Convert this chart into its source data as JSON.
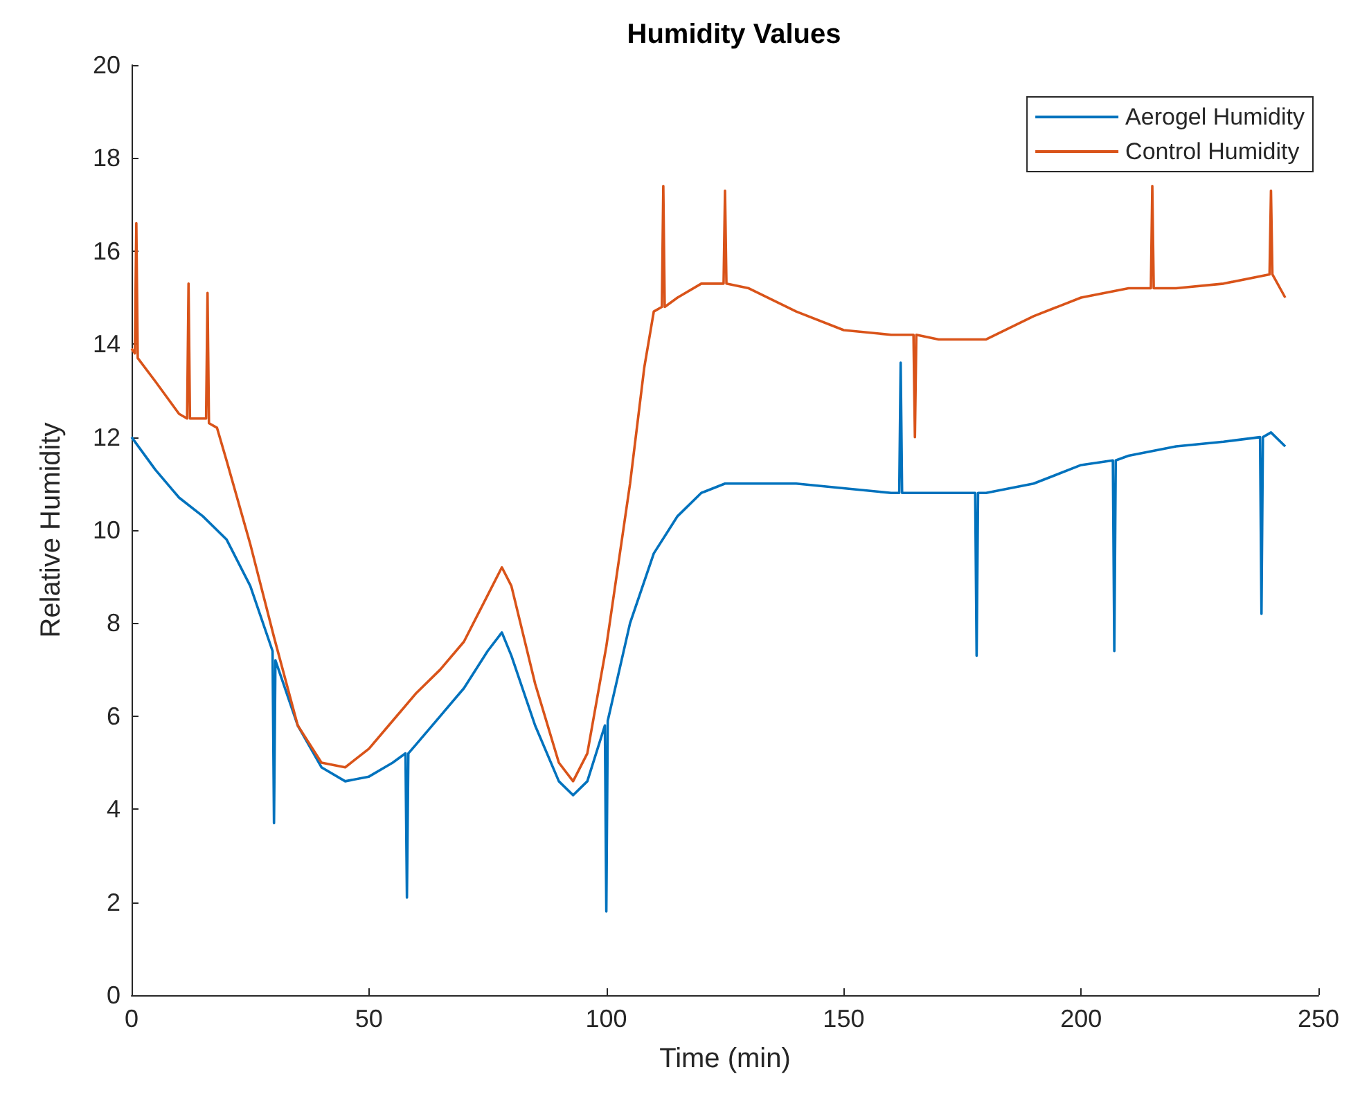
{
  "chart_data": {
    "type": "line",
    "title": "Humidity Values",
    "xlabel": "Time (min)",
    "ylabel": "Relative Humidity",
    "xlim": [
      0,
      250
    ],
    "xticks": [
      0,
      50,
      100,
      150,
      200,
      250
    ],
    "ylim": [
      0,
      20
    ],
    "yticks": [
      0,
      2,
      4,
      6,
      8,
      10,
      12,
      14,
      16,
      18,
      20
    ],
    "grid": false,
    "legend": "top right",
    "marker": "none",
    "line_style": "solid",
    "series": [
      {
        "name": "Aerogel Humidity",
        "color": "#0072bd",
        "x": [
          0,
          5,
          10,
          15,
          20,
          25,
          29.7,
          30,
          30.3,
          35,
          40,
          45,
          50,
          55,
          57.7,
          58,
          58.3,
          60,
          65,
          70,
          75,
          78,
          80,
          85,
          90,
          93,
          96,
          99.7,
          100,
          100.3,
          105,
          110,
          115,
          120,
          125,
          130,
          140,
          150,
          160,
          161.7,
          162,
          162.3,
          170,
          177.7,
          178,
          178.3,
          180,
          190,
          200,
          206.7,
          207,
          207.3,
          210,
          220,
          230,
          237.7,
          238,
          238.3,
          240,
          243
        ],
        "values": [
          12,
          11.3,
          10.7,
          10.3,
          9.8,
          8.8,
          7.4,
          3.7,
          7.2,
          5.8,
          4.9,
          4.6,
          4.7,
          5.0,
          5.2,
          2.1,
          5.2,
          5.4,
          6.0,
          6.6,
          7.4,
          7.8,
          7.3,
          5.8,
          4.6,
          4.3,
          4.6,
          5.8,
          1.8,
          5.9,
          8.0,
          9.5,
          10.3,
          10.8,
          11.0,
          11.0,
          11.0,
          10.9,
          10.8,
          10.8,
          13.6,
          10.8,
          10.8,
          10.8,
          7.3,
          10.8,
          10.8,
          11.0,
          11.4,
          11.5,
          7.4,
          11.5,
          11.6,
          11.8,
          11.9,
          12.0,
          8.2,
          12.0,
          12.1,
          11.8
        ]
      },
      {
        "name": "Control Humidity",
        "color": "#d95319",
        "x": [
          0,
          0.7,
          1,
          1.3,
          5,
          10,
          11.7,
          12,
          12.3,
          15,
          15.7,
          16,
          16.3,
          18,
          20,
          25,
          30,
          35,
          40,
          45,
          50,
          55,
          60,
          65,
          70,
          75,
          78,
          80,
          85,
          90,
          93,
          96,
          100,
          105,
          108,
          110,
          111.7,
          112,
          112.3,
          115,
          120,
          124.7,
          125,
          125.3,
          130,
          140,
          150,
          160,
          164.7,
          165,
          165.3,
          170,
          180,
          190,
          200,
          210,
          214.7,
          215,
          215.3,
          220,
          230,
          239.7,
          240,
          240.3,
          243
        ],
        "values": [
          13.9,
          13.8,
          16.6,
          13.7,
          13.2,
          12.5,
          12.4,
          15.3,
          12.4,
          12.4,
          12.4,
          15.1,
          12.3,
          12.2,
          11.5,
          9.7,
          7.7,
          5.8,
          5.0,
          4.9,
          5.3,
          5.9,
          6.5,
          7.0,
          7.6,
          8.6,
          9.2,
          8.8,
          6.7,
          5.0,
          4.6,
          5.2,
          7.5,
          11.0,
          13.5,
          14.7,
          14.8,
          17.4,
          14.8,
          15.0,
          15.3,
          15.3,
          17.3,
          15.3,
          15.2,
          14.7,
          14.3,
          14.2,
          14.2,
          12.0,
          14.2,
          14.1,
          14.1,
          14.6,
          15.0,
          15.2,
          15.2,
          17.4,
          15.2,
          15.2,
          15.3,
          15.5,
          17.3,
          15.5,
          15.0
        ]
      }
    ]
  }
}
